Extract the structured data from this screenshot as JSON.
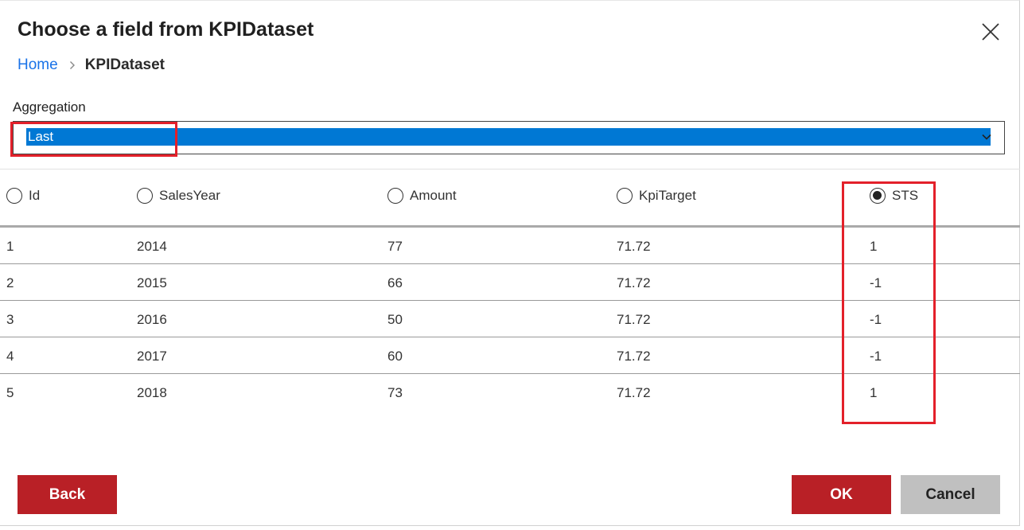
{
  "dialog": {
    "title": "Choose a field from KPIDataset",
    "breadcrumb": {
      "home": "Home",
      "current": "KPIDataset"
    }
  },
  "aggregation": {
    "label": "Aggregation",
    "selected": "Last"
  },
  "table": {
    "columns": [
      {
        "label": "Id",
        "selected": false
      },
      {
        "label": "SalesYear",
        "selected": false
      },
      {
        "label": "Amount",
        "selected": false
      },
      {
        "label": "KpiTarget",
        "selected": false
      },
      {
        "label": "STS",
        "selected": true
      }
    ],
    "rows": [
      [
        "1",
        "2014",
        "77",
        "71.72",
        "1"
      ],
      [
        "2",
        "2015",
        "66",
        "71.72",
        "-1"
      ],
      [
        "3",
        "2016",
        "50",
        "71.72",
        "-1"
      ],
      [
        "4",
        "2017",
        "60",
        "71.72",
        "-1"
      ],
      [
        "5",
        "2018",
        "73",
        "71.72",
        "1"
      ]
    ]
  },
  "buttons": {
    "back": "Back",
    "ok": "OK",
    "cancel": "Cancel"
  },
  "colors": {
    "accent": "#b92026",
    "highlight": "#e3202a",
    "selection": "#0078d4",
    "link": "#1a73e8"
  }
}
